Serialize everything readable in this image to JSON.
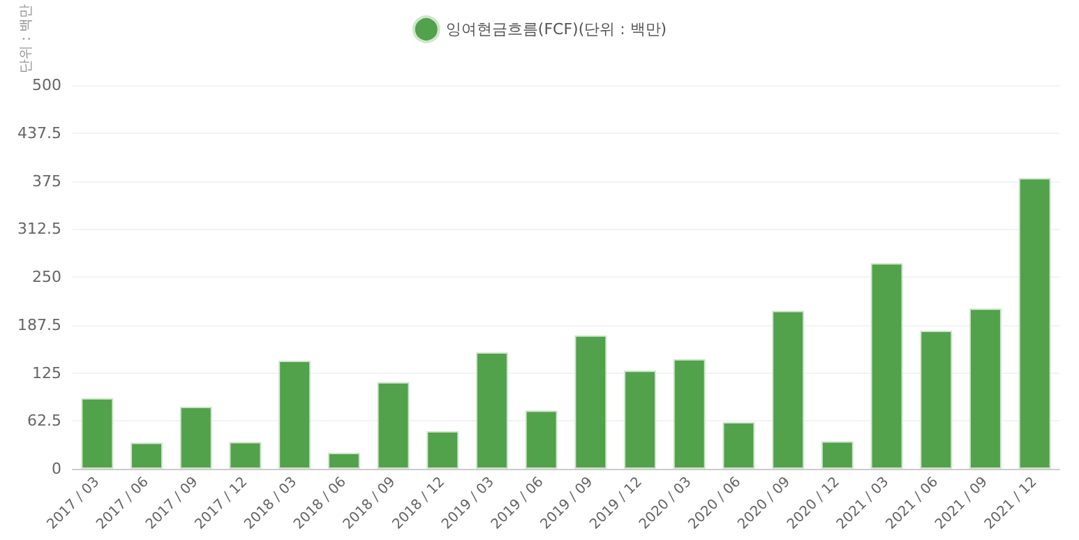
{
  "chart_data": {
    "type": "bar",
    "ylabel": "단위 : 백만",
    "categories": [
      "2017 / 03",
      "2017 / 06",
      "2017 / 09",
      "2017 / 12",
      "2018 / 03",
      "2018 / 06",
      "2018 / 09",
      "2018 / 12",
      "2019 / 03",
      "2019 / 06",
      "2019 / 09",
      "2019 / 12",
      "2020 / 03",
      "2020 / 06",
      "2020 / 09",
      "2020 / 12",
      "2021 / 03",
      "2021 / 06",
      "2021 / 09",
      "2021 / 12"
    ],
    "series": [
      {
        "name": "잉여현금흐름(FCF)(단위 : 백만)",
        "color": "#52a14b",
        "values": [
          92,
          34,
          81,
          35,
          141,
          21,
          113,
          49,
          152,
          76,
          174,
          128,
          143,
          61,
          206,
          36,
          268,
          180,
          209,
          379
        ]
      }
    ],
    "ylim": [
      0,
      500
    ],
    "yticks": [
      0,
      62.5,
      125,
      187.5,
      250,
      312.5,
      375,
      437.5,
      500
    ],
    "grid": "y",
    "legend": "top"
  }
}
